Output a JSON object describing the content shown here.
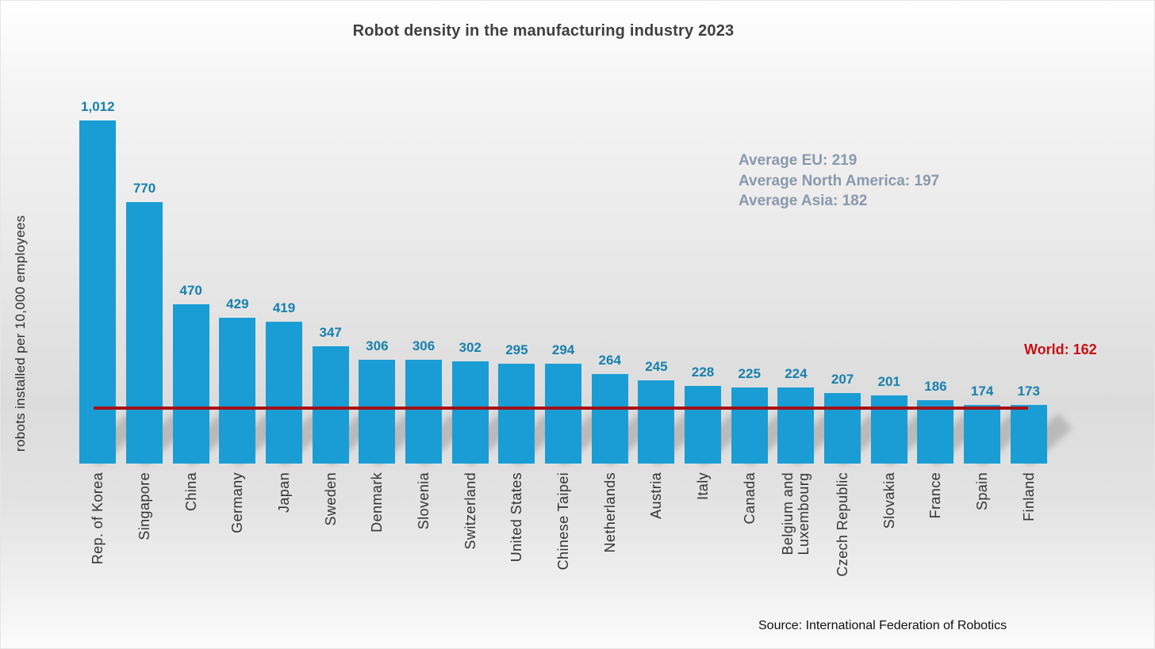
{
  "title": "Robot density in the manufacturing industry 2023",
  "y_axis_label": "robots installed per 10,000 employees",
  "annotations": {
    "averages": [
      "Average EU: 219",
      "Average North America: 197",
      "Average Asia: 182"
    ],
    "world_label": "World: 162"
  },
  "source": "Source: International Federation of Robotics",
  "colors": {
    "bar": "#1a9dd4",
    "value_label_text": "#1780ac",
    "world_line": "#a51015",
    "world_text": "#c80f14",
    "averages_text": "#8b98ac",
    "title_text": "#404040"
  },
  "chart_data": {
    "type": "bar",
    "title": "Robot density in the manufacturing industry 2023",
    "xlabel": "",
    "ylabel": "robots installed per 10,000 employees",
    "categories": [
      "Rep. of Korea",
      "Singapore",
      "China",
      "Germany",
      "Japan",
      "Sweden",
      "Denmark",
      "Slovenia",
      "Switzerland",
      "United States",
      "Chinese Taipei",
      "Netherlands",
      "Austria",
      "Italy",
      "Canada",
      "Belgium and\nLuxembourg",
      "Czech Republic",
      "Slovakia",
      "France",
      "Spain",
      "Finland"
    ],
    "values": [
      1012,
      770,
      470,
      429,
      419,
      347,
      306,
      306,
      302,
      295,
      294,
      264,
      245,
      228,
      225,
      224,
      207,
      201,
      186,
      174,
      173
    ],
    "value_labels": [
      "1,012",
      "770",
      "470",
      "429",
      "419",
      "347",
      "306",
      "306",
      "302",
      "295",
      "294",
      "264",
      "245",
      "228",
      "225",
      "224",
      "207",
      "201",
      "186",
      "174",
      "173"
    ],
    "reference_line": {
      "label": "World: 162",
      "value": 162
    },
    "reference_averages": [
      {
        "label": "Average EU",
        "value": 219
      },
      {
        "label": "Average North America",
        "value": 197
      },
      {
        "label": "Average Asia",
        "value": 182
      }
    ],
    "ylim": [
      0,
      1100
    ],
    "grid": false,
    "legend": "none",
    "bar_labels_position": "above"
  }
}
